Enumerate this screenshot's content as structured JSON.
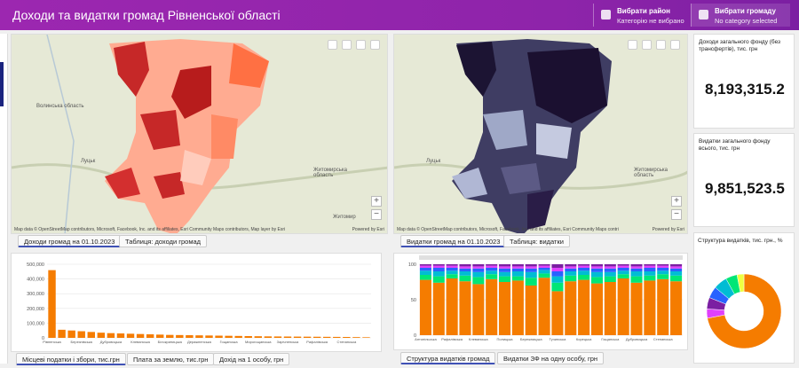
{
  "header": {
    "title": "Доходи та видатки громад Рівненської області",
    "filters": [
      {
        "label": "Вибрати район",
        "value": "Категорію не вибрано"
      },
      {
        "label": "Вибрати громаду",
        "value": "No category selected"
      }
    ]
  },
  "maps": [
    {
      "places": [
        "Волинська область",
        "Луцьк",
        "Житомирська область",
        "Житомир"
      ],
      "attribution": "Map data © OpenStreetMap contributors, Microsoft, Facebook, Inc. and its affiliates, Esri Community Maps contributors, Map layer by Esri",
      "powered": "Powered by Esri",
      "tabs": [
        "Доходи громад на 01.10.2023",
        "Таблиця: доходи громад"
      ]
    },
    {
      "places": [
        "Луцьк",
        "Житомирська область"
      ],
      "attribution": "Map data © OpenStreetMap contributors, Microsoft, Facebook, Inc. and its affiliates, Esri Community Maps contributors, Map layer by Esri",
      "powered": "Powered by Esri",
      "tabs": [
        "Видатки громад на 01.10.2023",
        "Таблиця: видатки"
      ]
    }
  ],
  "kpis": [
    {
      "label": "Доходи загального фонду (без трансфертів), тис. грн",
      "value": "8,193,315.2"
    },
    {
      "label": "Видатки загального фонду всього, тис. грн",
      "value": "9,851,523.5"
    }
  ],
  "bar_chart": {
    "type": "bar",
    "color": "#f57c00",
    "categories": [
      "Рівненська",
      null,
      null,
      "Березнівська",
      null,
      null,
      "Дубровицька",
      null,
      null,
      "Клеванська",
      null,
      null,
      "Білокриницька",
      null,
      null,
      "Деражненська",
      null,
      null,
      "Гощанська",
      null,
      null,
      "Мирогощанська",
      null,
      null,
      "Зарічненська",
      null,
      null,
      "Рафалівська",
      null,
      null,
      "Степанська",
      null,
      null
    ],
    "values": [
      460000,
      55000,
      50000,
      45000,
      40000,
      35000,
      32000,
      30000,
      28000,
      26000,
      24000,
      22000,
      20000,
      19000,
      18000,
      17000,
      16000,
      15000,
      14000,
      13000,
      12000,
      11000,
      10000,
      9500,
      9000,
      8500,
      8000,
      7500,
      7000,
      6500,
      6000,
      5000,
      4000
    ],
    "ylim": [
      0,
      500000
    ],
    "yticks": [
      0,
      {
        "value": 100000,
        "label": "100,000"
      },
      {
        "value": 200000,
        "label": "200,000"
      },
      {
        "value": 300000,
        "label": "300,000"
      },
      {
        "value": 400000,
        "label": "400,000"
      },
      {
        "value": 500000,
        "label": "500,000"
      }
    ],
    "grid": true,
    "tabs": [
      "Місцеві податки і збори, тис.грн",
      "Плата за землю, тис.грн",
      "Дохід на 1 особу, грн"
    ]
  },
  "stacked_chart": {
    "type": "stacked_bar",
    "categories": [
      "Антопільська",
      null,
      "Рафалівська",
      null,
      "Клеванська",
      null,
      "Полицька",
      null,
      "Бережницька",
      null,
      "Тучинська",
      null,
      "Корецька",
      null,
      "Гощанська",
      null,
      "Дубровицька",
      null,
      "Степанська",
      null
    ],
    "series": [
      {
        "color": "#f57c00",
        "values": [
          78,
          74,
          80,
          76,
          72,
          79,
          75,
          77,
          70,
          81,
          62,
          76,
          78,
          73,
          75,
          80,
          74,
          77,
          79,
          76
        ]
      },
      {
        "color": "#00e676",
        "values": [
          7,
          9,
          6,
          8,
          10,
          7,
          8,
          6,
          11,
          6,
          12,
          8,
          7,
          9,
          8,
          6,
          9,
          7,
          7,
          8
        ]
      },
      {
        "color": "#00bcd4",
        "values": [
          6,
          7,
          5,
          6,
          7,
          5,
          6,
          7,
          8,
          5,
          9,
          6,
          6,
          7,
          6,
          5,
          7,
          6,
          5,
          6
        ]
      },
      {
        "color": "#2962ff",
        "values": [
          4,
          5,
          4,
          4,
          5,
          4,
          5,
          4,
          5,
          3,
          7,
          4,
          4,
          5,
          5,
          4,
          4,
          5,
          4,
          4
        ]
      },
      {
        "color": "#e040fb",
        "values": [
          3,
          3,
          3,
          3,
          3,
          3,
          3,
          3,
          3,
          3,
          5,
          3,
          3,
          3,
          3,
          3,
          3,
          3,
          3,
          3
        ]
      },
      {
        "color": "#7b1fa2",
        "values": [
          2,
          2,
          2,
          3,
          3,
          2,
          3,
          3,
          3,
          2,
          5,
          3,
          2,
          3,
          3,
          2,
          3,
          2,
          2,
          3
        ]
      }
    ],
    "ylim": [
      0,
      100
    ],
    "yticks": [
      0,
      50,
      100
    ],
    "grid": true,
    "tabs": [
      "Структура видатків громад",
      "Видатки ЗФ на одну особу, грн"
    ]
  },
  "donut_chart": {
    "type": "donut",
    "title": "Структура видатків, тис. грн., %",
    "values": [
      72,
      4,
      5,
      5,
      6,
      5,
      3
    ],
    "colors": [
      "#f57c00",
      "#e040fb",
      "#7b1fa2",
      "#2962ff",
      "#00bcd4",
      "#00e676",
      "#eeff41"
    ]
  }
}
